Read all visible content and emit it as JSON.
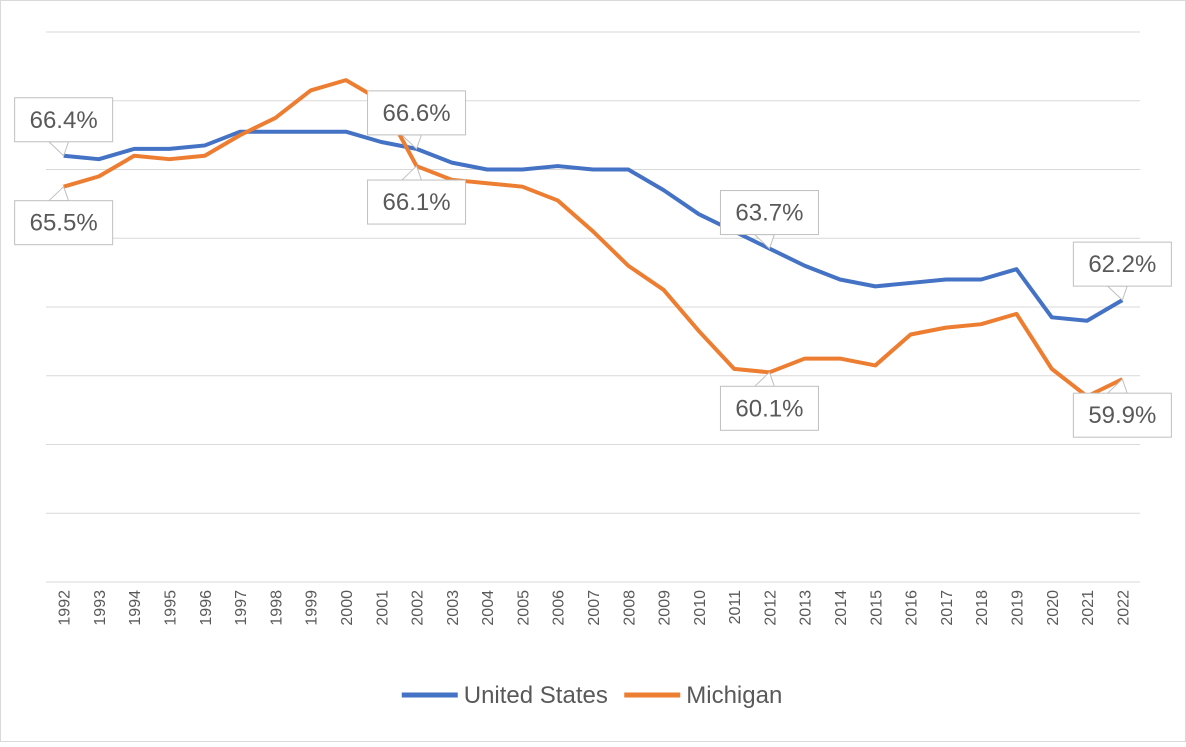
{
  "chart_data": {
    "type": "line",
    "categories": [
      "1992",
      "1993",
      "1994",
      "1995",
      "1996",
      "1997",
      "1998",
      "1999",
      "2000",
      "2001",
      "2002",
      "2003",
      "2004",
      "2005",
      "2006",
      "2007",
      "2008",
      "2009",
      "2010",
      "2011",
      "2012",
      "2013",
      "2014",
      "2015",
      "2016",
      "2017",
      "2018",
      "2019",
      "2020",
      "2021",
      "2022"
    ],
    "series": [
      {
        "name": "United States",
        "color": "#4472c4",
        "values": [
          66.4,
          66.3,
          66.6,
          66.6,
          66.7,
          67.1,
          67.1,
          67.1,
          67.1,
          66.8,
          66.6,
          66.2,
          66.0,
          66.0,
          66.1,
          66.0,
          66.0,
          65.4,
          64.7,
          64.2,
          63.7,
          63.2,
          62.8,
          62.6,
          62.7,
          62.8,
          62.8,
          63.1,
          61.7,
          61.6,
          62.2
        ],
        "value_labels": [
          "66.4%",
          null,
          null,
          null,
          null,
          null,
          null,
          null,
          null,
          null,
          "66.6%",
          null,
          null,
          null,
          null,
          null,
          null,
          null,
          null,
          null,
          "63.7%",
          null,
          null,
          null,
          null,
          null,
          null,
          null,
          null,
          null,
          "62.2%"
        ]
      },
      {
        "name": "Michigan",
        "color": "#ed7d31",
        "values": [
          65.5,
          65.8,
          66.4,
          66.3,
          66.4,
          67.0,
          67.5,
          68.3,
          68.6,
          68.0,
          66.1,
          65.7,
          65.6,
          65.5,
          65.1,
          64.2,
          63.2,
          62.5,
          61.3,
          60.2,
          60.1,
          60.5,
          60.5,
          60.3,
          61.2,
          61.4,
          61.5,
          61.8,
          60.2,
          59.4,
          59.9
        ],
        "value_labels": [
          "65.5%",
          null,
          null,
          null,
          null,
          null,
          null,
          null,
          null,
          null,
          "66.1%",
          null,
          null,
          null,
          null,
          null,
          null,
          null,
          null,
          null,
          "60.1%",
          null,
          null,
          null,
          null,
          null,
          null,
          null,
          null,
          null,
          "59.9%"
        ]
      }
    ],
    "ylim": [
      54,
      70
    ],
    "yticks": [
      54,
      56,
      58,
      60,
      62,
      64,
      66,
      68,
      70
    ],
    "grid": true,
    "legend": "bottom"
  }
}
